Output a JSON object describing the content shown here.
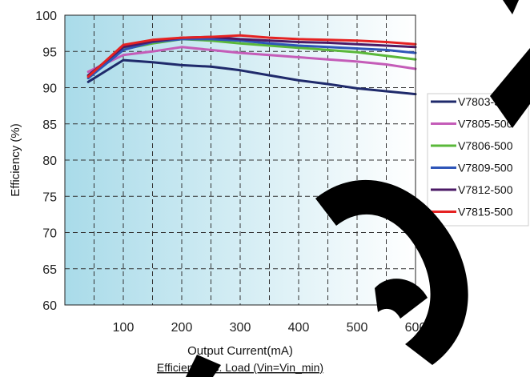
{
  "chart_data": {
    "type": "line",
    "title": "Efficiency vs. Load (Vin=Vin_min)",
    "xlabel": "Output Current(mA)",
    "ylabel": "Efficiency (%)",
    "xlim": [
      0,
      600
    ],
    "ylim": [
      60,
      100
    ],
    "x_ticks": [
      100,
      200,
      300,
      400,
      500,
      600
    ],
    "y_ticks": [
      60,
      65,
      70,
      75,
      80,
      85,
      90,
      95,
      100
    ],
    "grid": true,
    "legend_position": "right",
    "x": [
      40,
      100,
      150,
      200,
      250,
      300,
      350,
      400,
      450,
      500,
      550,
      600
    ],
    "series": [
      {
        "name": "V7803-500",
        "color": "#1f2a6b",
        "values": [
          90.8,
          93.8,
          93.5,
          93.1,
          92.9,
          92.4,
          91.7,
          91.0,
          90.5,
          89.9,
          89.5,
          89.1
        ]
      },
      {
        "name": "V7805-500",
        "color": "#c45cb8",
        "values": [
          92.2,
          94.5,
          95.0,
          95.6,
          95.2,
          94.8,
          94.5,
          94.2,
          93.9,
          93.6,
          93.2,
          92.6
        ]
      },
      {
        "name": "V7806-500",
        "color": "#5ab83a",
        "values": [
          91.6,
          95.3,
          96.1,
          96.7,
          96.5,
          96.1,
          95.8,
          95.5,
          95.2,
          94.9,
          94.4,
          93.9
        ]
      },
      {
        "name": "V7809-500",
        "color": "#2e55b8",
        "values": [
          91.3,
          95.2,
          96.3,
          96.7,
          96.7,
          96.5,
          96.1,
          95.8,
          95.6,
          95.4,
          95.2,
          94.8
        ]
      },
      {
        "name": "V7812-500",
        "color": "#4b1a66",
        "values": [
          91.7,
          95.6,
          96.4,
          96.9,
          97.0,
          96.7,
          96.5,
          96.3,
          96.2,
          96.0,
          95.8,
          95.6
        ]
      },
      {
        "name": "V7815-500",
        "color": "#e52222",
        "values": [
          91.5,
          95.9,
          96.6,
          96.9,
          97.0,
          97.2,
          96.9,
          96.7,
          96.6,
          96.5,
          96.3,
          96.0
        ]
      }
    ]
  }
}
